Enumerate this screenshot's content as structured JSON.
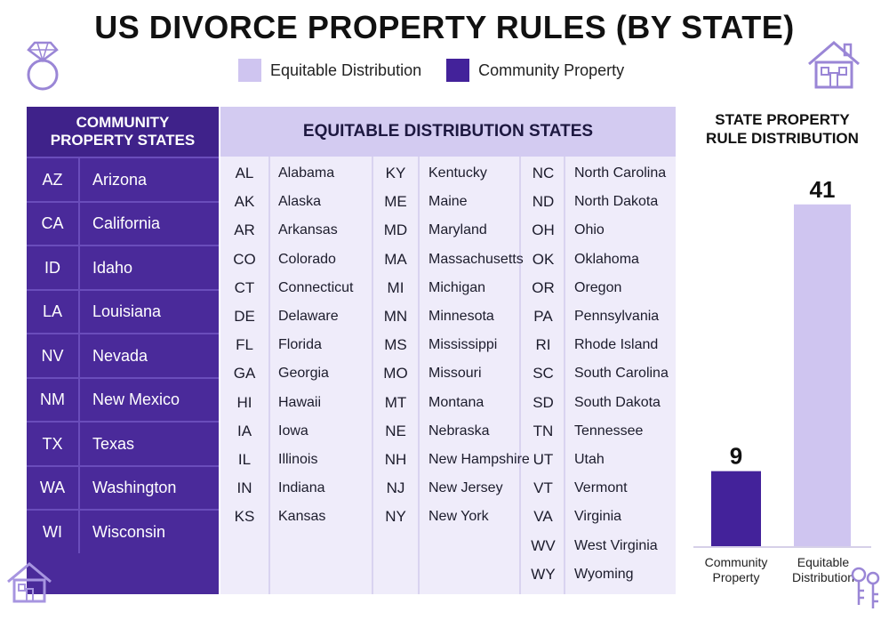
{
  "header": {
    "title": "US DIVORCE PROPERTY RULES (BY STATE)",
    "legend": [
      {
        "label": "Equitable Distribution",
        "color": "#cfc5f0"
      },
      {
        "label": "Community Property",
        "color": "#43229a"
      }
    ]
  },
  "community": {
    "heading_line1": "COMMUNITY",
    "heading_line2": "PROPERTY STATES",
    "rows": [
      {
        "abbr": "AZ",
        "name": "Arizona"
      },
      {
        "abbr": "CA",
        "name": "California"
      },
      {
        "abbr": "ID",
        "name": "Idaho"
      },
      {
        "abbr": "LA",
        "name": "Louisiana"
      },
      {
        "abbr": "NV",
        "name": "Nevada"
      },
      {
        "abbr": "NM",
        "name": "New Mexico"
      },
      {
        "abbr": "TX",
        "name": "Texas"
      },
      {
        "abbr": "WA",
        "name": "Washington"
      },
      {
        "abbr": "WI",
        "name": "Wisconsin"
      }
    ]
  },
  "equitable": {
    "heading": "EQUITABLE DISTRIBUTION STATES",
    "columns": [
      [
        {
          "abbr": "AL",
          "name": "Alabama"
        },
        {
          "abbr": "AK",
          "name": "Alaska"
        },
        {
          "abbr": "AR",
          "name": "Arkansas"
        },
        {
          "abbr": "CO",
          "name": "Colorado"
        },
        {
          "abbr": "CT",
          "name": "Connecticut"
        },
        {
          "abbr": "DE",
          "name": "Delaware"
        },
        {
          "abbr": "FL",
          "name": "Florida"
        },
        {
          "abbr": "GA",
          "name": "Georgia"
        },
        {
          "abbr": "HI",
          "name": "Hawaii"
        },
        {
          "abbr": "IA",
          "name": "Iowa"
        },
        {
          "abbr": "IL",
          "name": "Illinois"
        },
        {
          "abbr": "IN",
          "name": "Indiana"
        },
        {
          "abbr": "KS",
          "name": "Kansas"
        }
      ],
      [
        {
          "abbr": "KY",
          "name": "Kentucky"
        },
        {
          "abbr": "ME",
          "name": "Maine"
        },
        {
          "abbr": "MD",
          "name": "Maryland"
        },
        {
          "abbr": "MA",
          "name": "Massachusetts"
        },
        {
          "abbr": "MI",
          "name": "Michigan"
        },
        {
          "abbr": "MN",
          "name": "Minnesota"
        },
        {
          "abbr": "MS",
          "name": "Mississippi"
        },
        {
          "abbr": "MO",
          "name": "Missouri"
        },
        {
          "abbr": "MT",
          "name": "Montana"
        },
        {
          "abbr": "NE",
          "name": "Nebraska"
        },
        {
          "abbr": "NH",
          "name": "New Hampshire"
        },
        {
          "abbr": "NJ",
          "name": "New Jersey"
        },
        {
          "abbr": "NY",
          "name": "New York"
        }
      ],
      [
        {
          "abbr": "NC",
          "name": "North Carolina"
        },
        {
          "abbr": "ND",
          "name": "North Dakota"
        },
        {
          "abbr": "OH",
          "name": "Ohio"
        },
        {
          "abbr": "OK",
          "name": "Oklahoma"
        },
        {
          "abbr": "OR",
          "name": "Oregon"
        },
        {
          "abbr": "PA",
          "name": "Pennsylvania"
        },
        {
          "abbr": "RI",
          "name": "Rhode Island"
        },
        {
          "abbr": "SC",
          "name": "South Carolina"
        },
        {
          "abbr": "SD",
          "name": "South Dakota"
        },
        {
          "abbr": "TN",
          "name": "Tennessee"
        },
        {
          "abbr": "UT",
          "name": "Utah"
        },
        {
          "abbr": "VT",
          "name": "Vermont"
        },
        {
          "abbr": "VA",
          "name": "Virginia"
        },
        {
          "abbr": "WV",
          "name": "West Virginia"
        },
        {
          "abbr": "WY",
          "name": "Wyoming"
        }
      ]
    ]
  },
  "chart_data": {
    "type": "bar",
    "title": "STATE PROPERTY RULE DISTRIBUTION",
    "categories": [
      "Community Property",
      "Equitable Distribution"
    ],
    "values": [
      9,
      41
    ],
    "colors": [
      "#43229a",
      "#cfc5f0"
    ],
    "xlabel": "",
    "ylabel": "",
    "grid": false
  },
  "icons": [
    "ring-icon",
    "house-icon",
    "house-icon",
    "keys-icon"
  ]
}
